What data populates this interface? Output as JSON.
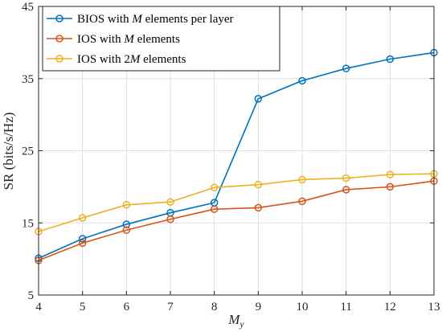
{
  "chart_data": {
    "type": "line",
    "title": "",
    "xlabel_base": "M",
    "xlabel_sub": "y",
    "ylabel": "SR (bits/s/Hz)",
    "x": [
      4,
      5,
      6,
      7,
      8,
      9,
      10,
      11,
      12,
      13
    ],
    "xlim": [
      4,
      13
    ],
    "ylim": [
      5,
      45
    ],
    "xticks": [
      4,
      5,
      6,
      7,
      8,
      9,
      10,
      11,
      12,
      13
    ],
    "yticks": [
      5,
      15,
      25,
      35,
      45
    ],
    "grid": true,
    "legend_position": "top-left",
    "series": [
      {
        "name_parts": [
          "BIOS with ",
          "M",
          " elements per layer"
        ],
        "color": "#0072BD",
        "marker": "circle",
        "values": [
          10.1,
          12.8,
          14.8,
          16.4,
          17.8,
          32.2,
          34.7,
          36.4,
          37.7,
          38.6
        ]
      },
      {
        "name_parts": [
          "IOS with ",
          "M",
          " elements"
        ],
        "color": "#D95319",
        "marker": "circle",
        "values": [
          9.8,
          12.2,
          14.0,
          15.5,
          16.9,
          17.1,
          18.0,
          19.6,
          20.0,
          20.8
        ]
      },
      {
        "name_parts": [
          "IOS with 2",
          "M",
          " elements"
        ],
        "color": "#EDB120",
        "marker": "circle",
        "values": [
          13.8,
          15.7,
          17.5,
          17.9,
          19.9,
          20.3,
          21.0,
          21.2,
          21.7,
          21.8
        ]
      }
    ]
  }
}
